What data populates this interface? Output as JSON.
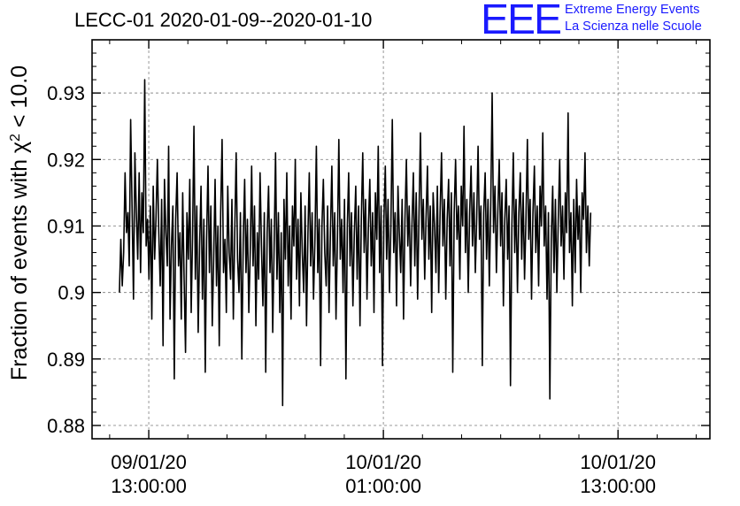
{
  "header": {
    "title": "LECC-01 2020-01-09--2020-01-10",
    "logo_mark": "EEE",
    "logo_line1": "Extreme Energy Events",
    "logo_line2": "La Scienza nelle Scuole"
  },
  "colors": {
    "logo": "#1a1aff",
    "line": "#000000",
    "grid": "#888888"
  },
  "chart_data": {
    "type": "line",
    "title": "LECC-01 2020-01-09--2020-01-10",
    "ylabel": "Fraction of events with χ² < 10.0",
    "xlabel": "",
    "ylim": [
      0.878,
      0.938
    ],
    "xlim_hours": [
      -2.9,
      28.7
    ],
    "grid": true,
    "yticks": [
      0.88,
      0.89,
      0.9,
      0.91,
      0.92,
      0.93
    ],
    "ytick_labels": [
      "0.88",
      "0.89",
      "0.9",
      "0.91",
      "0.92",
      "0.93"
    ],
    "xticks": [
      {
        "date": "09/01/20",
        "time": "13:00:00"
      },
      {
        "date": "10/01/20",
        "time": "01:00:00"
      },
      {
        "date": "10/01/20",
        "time": "13:00:00"
      }
    ],
    "series": [
      {
        "values": [
          0.9,
          0.908,
          0.901,
          0.906,
          0.918,
          0.909,
          0.912,
          0.904,
          0.926,
          0.913,
          0.899,
          0.921,
          0.912,
          0.905,
          0.918,
          0.903,
          0.915,
          0.909,
          0.932,
          0.907,
          0.911,
          0.902,
          0.913,
          0.896,
          0.916,
          0.905,
          0.911,
          0.92,
          0.909,
          0.901,
          0.914,
          0.892,
          0.917,
          0.909,
          0.904,
          0.922,
          0.896,
          0.907,
          0.913,
          0.887,
          0.911,
          0.918,
          0.904,
          0.909,
          0.896,
          0.915,
          0.902,
          0.891,
          0.912,
          0.905,
          0.917,
          0.897,
          0.909,
          0.925,
          0.902,
          0.913,
          0.894,
          0.907,
          0.916,
          0.899,
          0.911,
          0.888,
          0.908,
          0.919,
          0.903,
          0.913,
          0.895,
          0.905,
          0.917,
          0.901,
          0.91,
          0.892,
          0.912,
          0.923,
          0.903,
          0.908,
          0.897,
          0.916,
          0.906,
          0.902,
          0.914,
          0.896,
          0.909,
          0.921,
          0.905,
          0.9,
          0.912,
          0.89,
          0.908,
          0.917,
          0.903,
          0.911,
          0.897,
          0.906,
          0.919,
          0.904,
          0.913,
          0.895,
          0.909,
          0.902,
          0.918,
          0.907,
          0.898,
          0.912,
          0.888,
          0.909,
          0.916,
          0.903,
          0.911,
          0.894,
          0.907,
          0.921,
          0.902,
          0.912,
          0.897,
          0.909,
          0.883,
          0.914,
          0.905,
          0.918,
          0.901,
          0.91,
          0.896,
          0.913,
          0.907,
          0.92,
          0.902,
          0.911,
          0.898,
          0.915,
          0.906,
          0.9,
          0.913,
          0.895,
          0.909,
          0.918,
          0.904,
          0.912,
          0.899,
          0.908,
          0.922,
          0.903,
          0.911,
          0.889,
          0.91,
          0.917,
          0.906,
          0.901,
          0.913,
          0.897,
          0.909,
          0.919,
          0.904,
          0.912,
          0.896,
          0.908,
          0.923,
          0.905,
          0.911,
          0.9,
          0.914,
          0.887,
          0.91,
          0.918,
          0.904,
          0.912,
          0.898,
          0.909,
          0.916,
          0.902,
          0.913,
          0.895,
          0.911,
          0.921,
          0.906,
          0.914,
          0.899,
          0.91,
          0.917,
          0.904,
          0.912,
          0.897,
          0.915,
          0.908,
          0.922,
          0.903,
          0.913,
          0.889,
          0.911,
          0.919,
          0.905,
          0.914,
          0.9,
          0.91,
          0.926,
          0.906,
          0.912,
          0.898,
          0.916,
          0.909,
          0.903,
          0.914,
          0.896,
          0.911,
          0.92,
          0.907,
          0.913,
          0.901,
          0.91,
          0.918,
          0.904,
          0.915,
          0.899,
          0.912,
          0.924,
          0.908,
          0.914,
          0.902,
          0.911,
          0.919,
          0.905,
          0.913,
          0.897,
          0.915,
          0.91,
          0.903,
          0.916,
          0.9,
          0.912,
          0.921,
          0.907,
          0.914,
          0.899,
          0.911,
          0.917,
          0.904,
          0.915,
          0.888,
          0.912,
          0.92,
          0.908,
          0.913,
          0.902,
          0.916,
          0.91,
          0.925,
          0.906,
          0.914,
          0.9,
          0.912,
          0.919,
          0.907,
          0.915,
          0.903,
          0.911,
          0.922,
          0.908,
          0.913,
          0.889,
          0.912,
          0.918,
          0.905,
          0.914,
          0.901,
          0.913,
          0.93,
          0.909,
          0.916,
          0.903,
          0.912,
          0.92,
          0.907,
          0.915,
          0.898,
          0.911,
          0.917,
          0.905,
          0.913,
          0.886,
          0.91,
          0.921,
          0.906,
          0.914,
          0.9,
          0.912,
          0.918,
          0.905,
          0.915,
          0.902,
          0.911,
          0.923,
          0.908,
          0.914,
          0.899,
          0.912,
          0.919,
          0.906,
          0.913,
          0.901,
          0.916,
          0.91,
          0.924,
          0.907,
          0.913,
          0.899,
          0.912,
          0.884,
          0.908,
          0.916,
          0.903,
          0.914,
          0.9,
          0.911,
          0.92,
          0.907,
          0.913,
          0.902,
          0.915,
          0.909,
          0.927,
          0.906,
          0.912,
          0.898,
          0.914,
          0.903,
          0.917,
          0.908,
          0.913,
          0.9,
          0.915,
          0.911,
          0.921,
          0.906,
          0.913,
          0.904,
          0.912
        ]
      }
    ]
  }
}
